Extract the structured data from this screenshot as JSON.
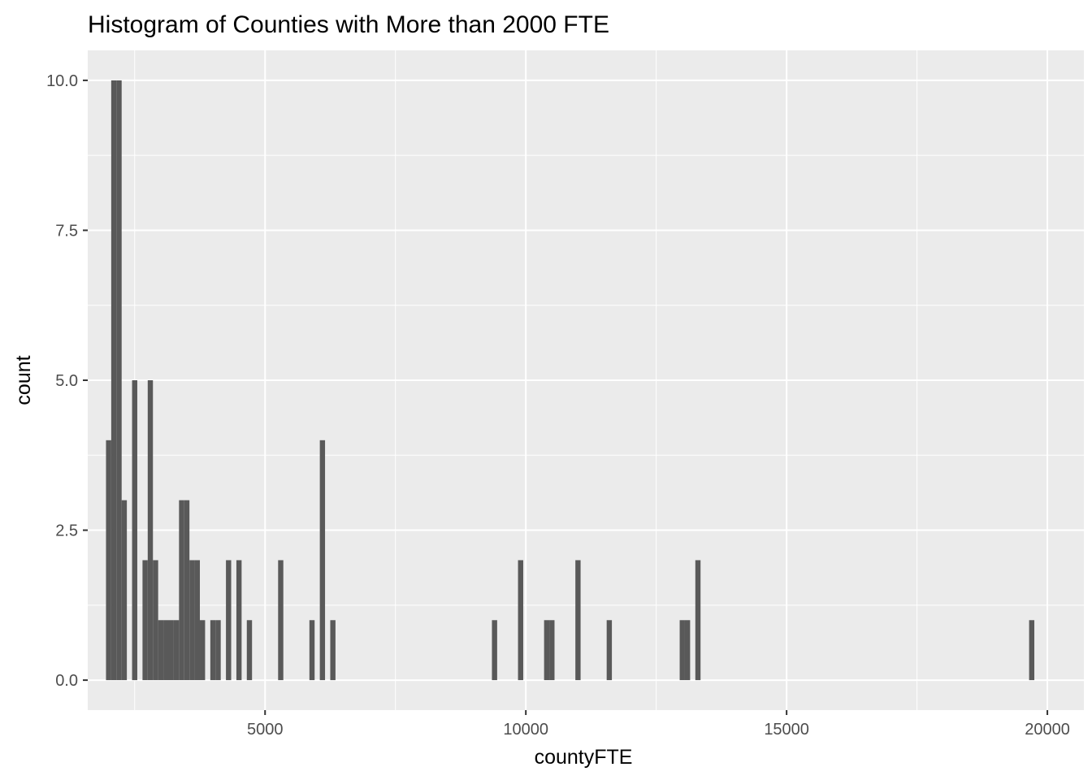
{
  "chart_data": {
    "type": "bar",
    "title": "Histogram of Counties with More than 2000 FTE",
    "xlabel": "countyFTE",
    "ylabel": "count",
    "xlim": [
      1600,
      20700
    ],
    "ylim": [
      -0.5,
      10.5
    ],
    "x_ticks": [
      5000,
      10000,
      15000,
      20000
    ],
    "x_tick_labels": [
      "5000",
      "10000",
      "15000",
      "20000"
    ],
    "y_ticks": [
      0,
      2.5,
      5,
      7.5,
      10
    ],
    "y_tick_labels": [
      "0.0",
      "2.5",
      "5.0",
      "7.5",
      "10.0"
    ],
    "grid": true,
    "bin_width": 100,
    "bins": [
      {
        "x": 2000,
        "count": 4
      },
      {
        "x": 2100,
        "count": 10
      },
      {
        "x": 2200,
        "count": 10
      },
      {
        "x": 2300,
        "count": 3
      },
      {
        "x": 2500,
        "count": 5
      },
      {
        "x": 2700,
        "count": 2
      },
      {
        "x": 2800,
        "count": 5
      },
      {
        "x": 2900,
        "count": 2
      },
      {
        "x": 3000,
        "count": 1
      },
      {
        "x": 3100,
        "count": 1
      },
      {
        "x": 3200,
        "count": 1
      },
      {
        "x": 3300,
        "count": 1
      },
      {
        "x": 3400,
        "count": 3
      },
      {
        "x": 3500,
        "count": 3
      },
      {
        "x": 3600,
        "count": 2
      },
      {
        "x": 3700,
        "count": 2
      },
      {
        "x": 3800,
        "count": 1
      },
      {
        "x": 4000,
        "count": 1
      },
      {
        "x": 4100,
        "count": 1
      },
      {
        "x": 4300,
        "count": 2
      },
      {
        "x": 4500,
        "count": 2
      },
      {
        "x": 4700,
        "count": 1
      },
      {
        "x": 5300,
        "count": 2
      },
      {
        "x": 5900,
        "count": 1
      },
      {
        "x": 6100,
        "count": 4
      },
      {
        "x": 6300,
        "count": 1
      },
      {
        "x": 9400,
        "count": 1
      },
      {
        "x": 9900,
        "count": 2
      },
      {
        "x": 10400,
        "count": 1
      },
      {
        "x": 10500,
        "count": 1
      },
      {
        "x": 11000,
        "count": 2
      },
      {
        "x": 11600,
        "count": 1
      },
      {
        "x": 13000,
        "count": 1
      },
      {
        "x": 13100,
        "count": 1
      },
      {
        "x": 13300,
        "count": 2
      },
      {
        "x": 19700,
        "count": 1
      }
    ],
    "colors": {
      "panel": "#ebebeb",
      "grid_major": "#ffffff",
      "bar": "#595959",
      "tick": "#333333"
    }
  }
}
